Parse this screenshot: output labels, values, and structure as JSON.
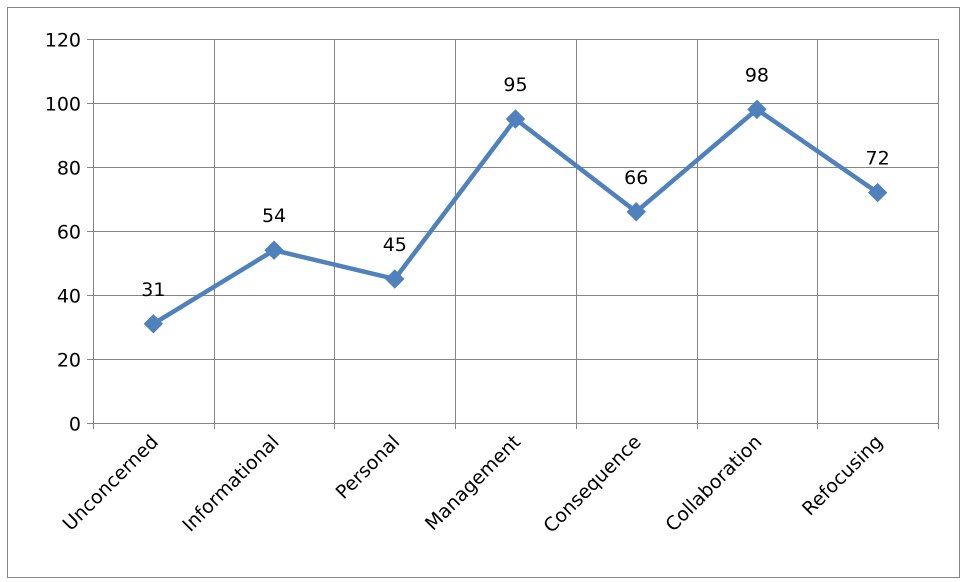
{
  "chart_data": {
    "type": "line",
    "title": "",
    "xlabel": "",
    "ylabel": "",
    "categories": [
      "Unconcerned",
      "Informational",
      "Personal",
      "Management",
      "Consequence",
      "Collaboration",
      "Refocusing"
    ],
    "series": [
      {
        "values": [
          31,
          54,
          45,
          95,
          66,
          98,
          72
        ]
      }
    ],
    "ylim": [
      0,
      120
    ],
    "yticks": [
      0,
      20,
      40,
      60,
      80,
      100,
      120
    ],
    "grid": true,
    "legend": "none",
    "data_labels": true,
    "marker": "diamond",
    "line_color": "#4F81BD"
  }
}
